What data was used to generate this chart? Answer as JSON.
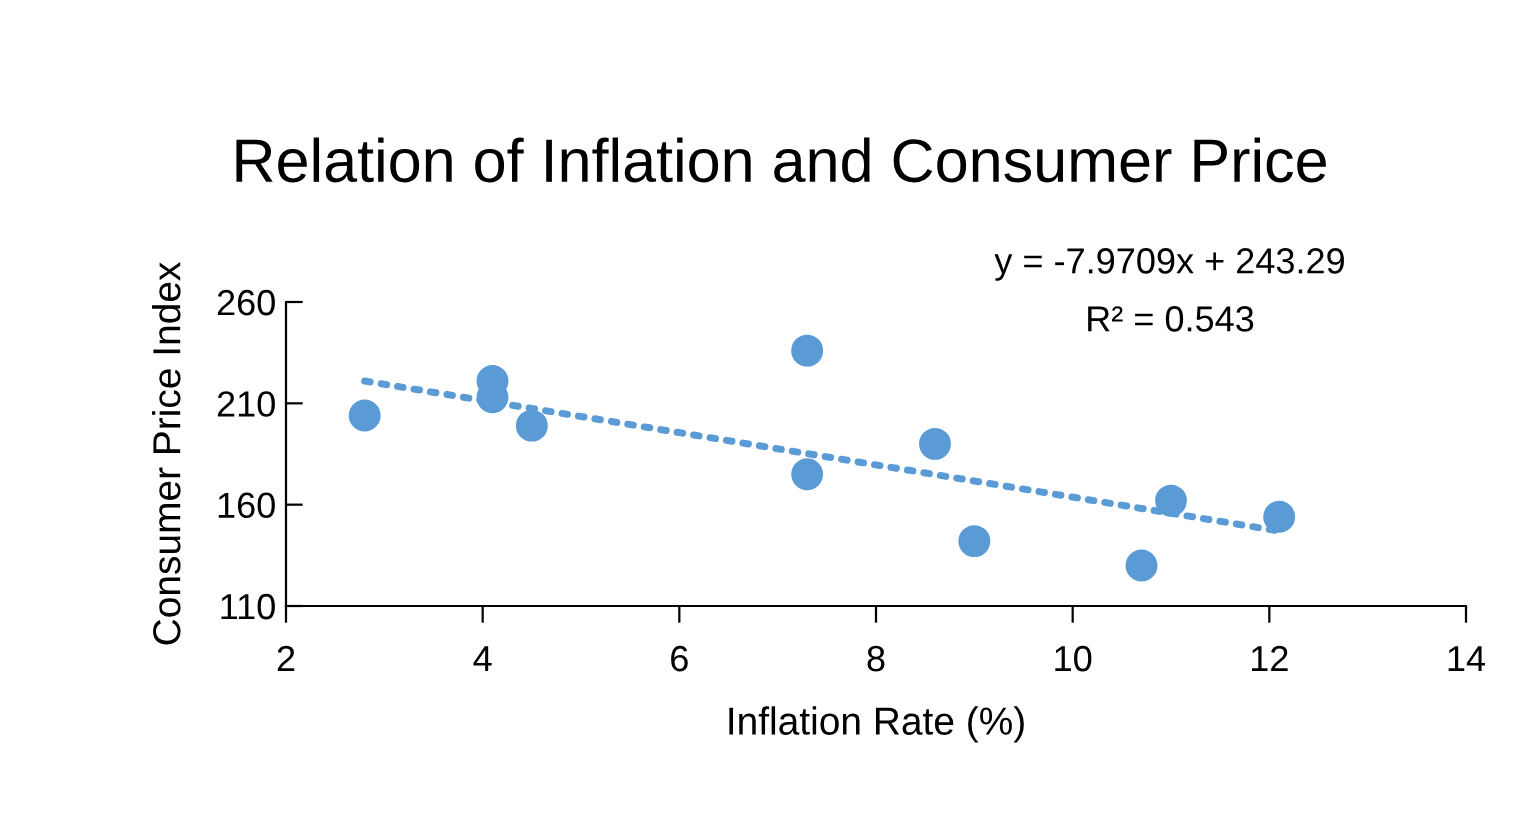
{
  "chart_data": {
    "type": "scatter",
    "title": "Relation of Inflation and Consumer Price",
    "xlabel": "Inflation Rate (%)",
    "ylabel": "Consumer Price Index",
    "annotations": [
      "y = -7.9709x + 243.29",
      "R² = 0.543"
    ],
    "series": [
      {
        "color": "#5b9bd5",
        "marker": "circle",
        "x": [
          2.8,
          4.1,
          4.1,
          4.5,
          7.3,
          7.3,
          8.6,
          9.0,
          10.7,
          11.0,
          12.1
        ],
        "values": [
          204,
          221,
          213,
          199,
          236,
          175,
          190,
          142,
          130,
          162,
          154
        ]
      },
      {
        "type": "line",
        "color": "#5b9bd5",
        "line_style": "dotted",
        "marker": "none",
        "x": [
          2.8,
          12.1
        ],
        "values": [
          221,
          147
        ]
      }
    ],
    "xlim": [
      2,
      14
    ],
    "xticks": [
      2,
      4,
      6,
      8,
      10,
      12,
      14
    ],
    "ylim": [
      110,
      260
    ],
    "yticks": [
      110,
      160,
      210,
      260
    ],
    "grid": false,
    "legend": false
  }
}
